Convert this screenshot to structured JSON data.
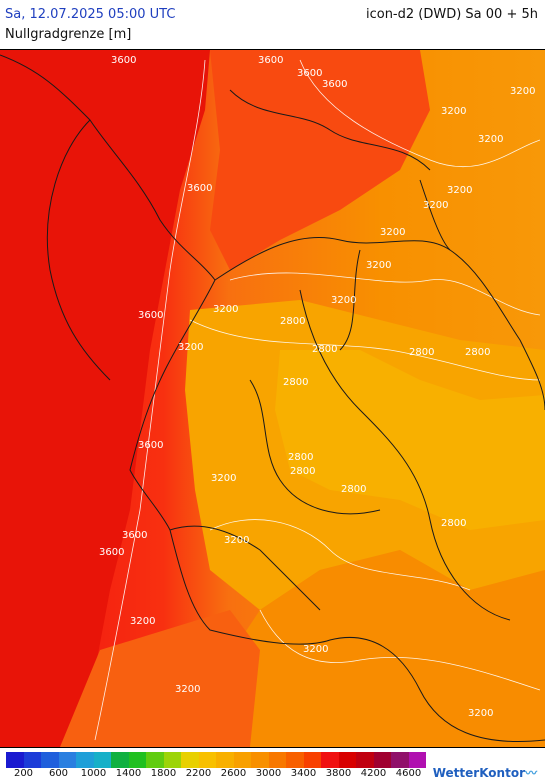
{
  "header": {
    "datetime": "Sa, 12.07.2025 05:00 UTC",
    "variable": "Nullgradgrenze [m]",
    "model_run": "icon-d2 (DWD) Sa 00 + 5h"
  },
  "contour_labels": [
    "3600",
    "3600",
    "3600",
    "3600",
    "3200",
    "3200",
    "3200",
    "3200",
    "3200",
    "3200",
    "3600",
    "3200",
    "3200",
    "2800",
    "2800",
    "2800",
    "2800",
    "2800",
    "2800",
    "2800",
    "2800",
    "3600",
    "3200",
    "2800",
    "3200",
    "3600",
    "3600",
    "3200",
    "3600",
    "3200",
    "3200",
    "3200",
    "3200",
    "3200"
  ],
  "legend": {
    "colors": [
      "#1a1ad0",
      "#1c3cd8",
      "#1f5fdc",
      "#2a7fe0",
      "#1f9fd8",
      "#17b0c8",
      "#10b040",
      "#20c020",
      "#60cc10",
      "#9cd408",
      "#e8d000",
      "#f8c000",
      "#f8b000",
      "#f8a000",
      "#f89000",
      "#f87800",
      "#f86000",
      "#f84000",
      "#f01010",
      "#d80000",
      "#c00010",
      "#a00030",
      "#90106a",
      "#b010b0"
    ],
    "tick_labels": [
      "200",
      "600",
      "1000",
      "1400",
      "1800",
      "2200",
      "2600",
      "3000",
      "3400",
      "3800",
      "4200",
      "4600"
    ]
  },
  "brand": {
    "name": "WetterKontor",
    "icon": "wetterkontor-logo-icon"
  }
}
